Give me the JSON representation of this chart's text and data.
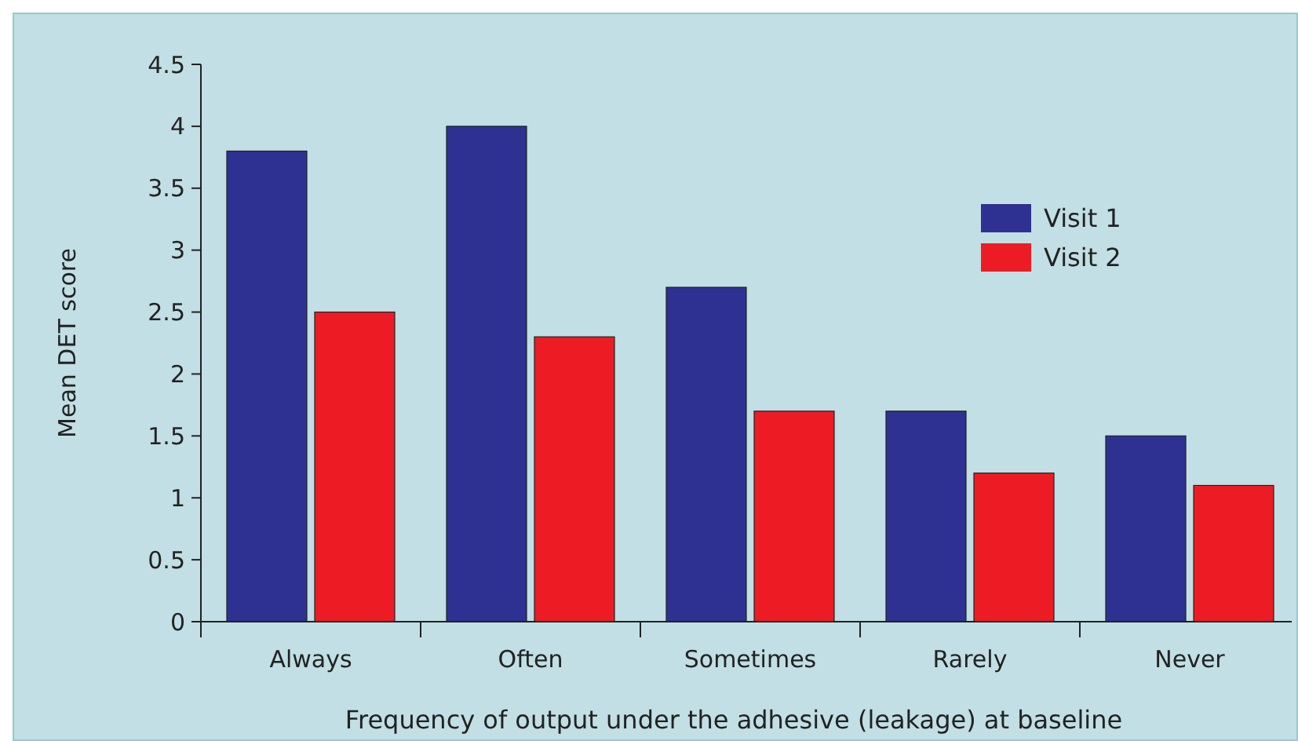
{
  "chart_data": {
    "type": "bar",
    "xlabel": "Frequency of output under the adhesive (leakage) at baseline",
    "ylabel": "Mean DET score",
    "categories": [
      "Always",
      "Often",
      "Sometimes",
      "Rarely",
      "Never"
    ],
    "series": [
      {
        "name": "Visit 1",
        "color": "#2e3192",
        "values": [
          3.8,
          4.0,
          2.7,
          1.7,
          1.5
        ]
      },
      {
        "name": "Visit 2",
        "color": "#ed1c24",
        "values": [
          2.5,
          2.3,
          1.7,
          1.2,
          1.1
        ]
      }
    ],
    "ylim": [
      0,
      4.5
    ],
    "yticks": [
      0,
      0.5,
      1,
      {
        "value": 1.5,
        "label": "1.5"
      },
      2,
      {
        "value": 2.5,
        "label": "2.5"
      },
      3,
      {
        "value": 3.5,
        "label": "3.5"
      },
      4,
      {
        "value": 4.5,
        "label": "4.5"
      }
    ],
    "grid": false,
    "legend": "top right"
  }
}
